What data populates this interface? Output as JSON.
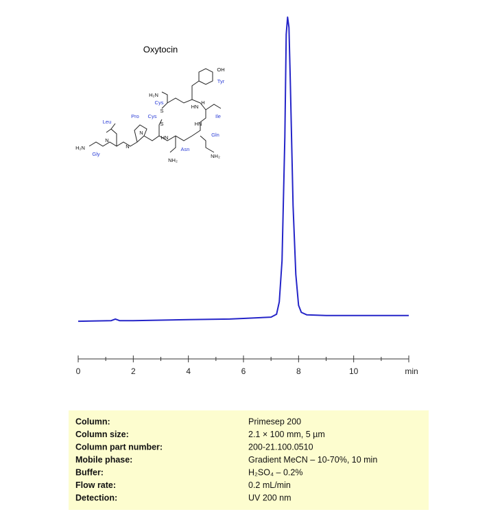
{
  "chart_data": {
    "type": "line",
    "title": "Oxytocin",
    "x": [
      0,
      1.2,
      1.35,
      1.5,
      2,
      4,
      5.5,
      6,
      7,
      7.2,
      7.3,
      7.4,
      7.5,
      7.55,
      7.6,
      7.65,
      7.7,
      7.8,
      7.9,
      8.0,
      8.1,
      8.3,
      9,
      12
    ],
    "series": [
      {
        "color": "#2424c8",
        "values": [
          4.7,
          4.9,
          5.4,
          4.9,
          4.9,
          5.2,
          5.4,
          5.6,
          6.0,
          6.9,
          10.8,
          23.7,
          62.4,
          94.6,
          100,
          96.8,
          79.6,
          40.9,
          19.4,
          9.7,
          7.5,
          6.7,
          6.5,
          6.5
        ]
      }
    ],
    "xlim": [
      0,
      12
    ],
    "xticks": [
      0,
      2,
      4,
      6,
      8,
      10,
      {
        "value": 12,
        "label": "min"
      }
    ],
    "xminorticks": [
      1,
      3,
      5,
      7,
      9,
      11
    ],
    "ylim": [
      0,
      100
    ],
    "structure_labels": [
      "OH",
      "Tyr",
      "H₂N",
      "Cys",
      "HN",
      "H",
      "Ile",
      "S",
      "S",
      "Pro",
      "Cys",
      "Leu",
      "HN",
      "N",
      "Gln",
      "H₂N",
      "Gly",
      "Asn",
      "NH₂",
      "NH₂",
      "N",
      "N",
      "HN"
    ]
  },
  "table": {
    "rows": [
      [
        "Column:",
        "Primesep  200"
      ],
      [
        "Column size:",
        "2.1 × 100 mm, 5 µm"
      ],
      [
        "Column part number:",
        "200-21.100.0510"
      ],
      [
        "Mobile phase:",
        "Gradient MeCN – 10-70%, 10 min"
      ],
      [
        "Buffer:",
        "H₂SO₄ – 0.2%"
      ],
      [
        "Flow rate:",
        "0.2 mL/min"
      ],
      [
        "Detection:",
        "UV 200 nm"
      ]
    ]
  }
}
